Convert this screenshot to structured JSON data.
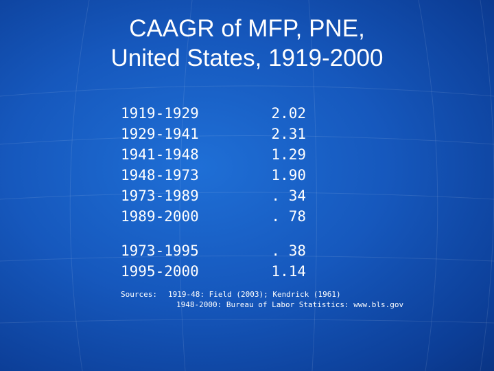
{
  "slide": {
    "title_line1": "CAAGR of MFP, PNE,",
    "title_line2": "United States, 1919-2000"
  },
  "table": {
    "group1": [
      {
        "period": "1919-1929",
        "value": "2.02"
      },
      {
        "period": "1929-1941",
        "value": "2.31"
      },
      {
        "period": "1941-1948",
        "value": "1.29"
      },
      {
        "period": "1948-1973",
        "value": "1.90"
      },
      {
        "period": "1973-1989",
        "value": ". 34"
      },
      {
        "period": "1989-2000",
        "value": ". 78"
      }
    ],
    "group2": [
      {
        "period": "1973-1995",
        "value": ". 38"
      },
      {
        "period": "1995-2000",
        "value": "1.14"
      }
    ]
  },
  "sources": {
    "label": "Sources:",
    "line1": "1919-48:  Field (2003); Kendrick (1961)",
    "line2": "1948-2000:  Bureau of Labor Statistics: www.bls.gov"
  },
  "colors": {
    "background": "#1658bd",
    "text": "#ffffff"
  }
}
